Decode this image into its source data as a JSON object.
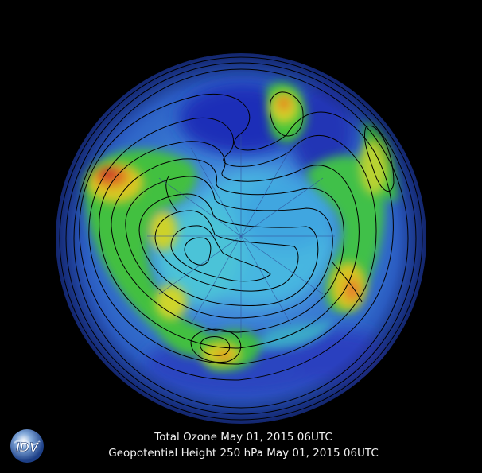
{
  "caption": {
    "line1": "Total Ozone May 01, 2015 06UTC",
    "line2": "Geopotential Height 250 hPa May 01, 2015 06UTC"
  },
  "logo": {
    "text": "IDV",
    "icon": "idv-globe-logo"
  },
  "map": {
    "projection": "polar-stereographic-south",
    "contour_color": "#000000",
    "colors": {
      "low": "#1b2bb8",
      "mid_blue": "#2f7fe0",
      "cyan": "#3fc6d8",
      "green": "#3fbf3a",
      "yellow": "#d8d020",
      "orange": "#e07a20",
      "red": "#c8302a"
    }
  }
}
